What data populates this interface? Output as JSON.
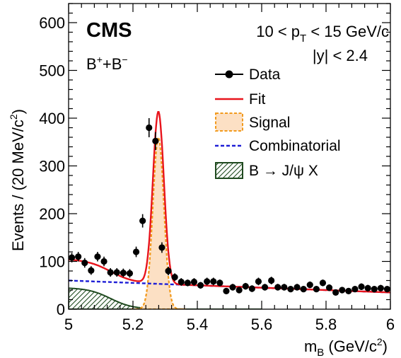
{
  "chart_data": {
    "type": "scatter",
    "experiment_label": "CMS",
    "process_label": {
      "main": "B",
      "sup1": "+",
      "mid": "+B",
      "sup2": "−"
    },
    "kinematic_text": {
      "pt_pre": "10 < p",
      "pt_sub": "T",
      "pt_post": " < 15 GeV/c",
      "y_text": "|y| < 2.4"
    },
    "xlabel": {
      "main": "m",
      "sub": "B",
      "post": " (GeV/c",
      "sup": "2",
      "end": ")"
    },
    "ylabel": {
      "main": "Events / (20 MeV/c",
      "sup": "2",
      "end": ")"
    },
    "xlim": [
      5.0,
      6.0
    ],
    "ylim": [
      0,
      640
    ],
    "x_ticks": [
      "5",
      "5.2",
      "5.4",
      "5.6",
      "5.8",
      "6"
    ],
    "y_ticks": [
      "0",
      "100",
      "200",
      "300",
      "400",
      "500",
      "600"
    ],
    "legend_position": "top-right",
    "legend": [
      "Data",
      "Fit",
      "Signal",
      "Combinatorial",
      "B → J/ψ X"
    ],
    "colors": {
      "fit": "#e8141c",
      "signal_fill": "#fce0c4",
      "signal_line": "#f29a1d",
      "combinatorial": "#1f1fd6",
      "bkg_jpsix": "#1f4a1f"
    },
    "series": [
      {
        "name": "Data",
        "x": [
          5.01,
          5.03,
          5.05,
          5.07,
          5.09,
          5.11,
          5.13,
          5.15,
          5.17,
          5.19,
          5.21,
          5.23,
          5.25,
          5.27,
          5.29,
          5.31,
          5.33,
          5.35,
          5.37,
          5.39,
          5.41,
          5.43,
          5.45,
          5.47,
          5.49,
          5.51,
          5.53,
          5.55,
          5.57,
          5.59,
          5.61,
          5.63,
          5.65,
          5.67,
          5.69,
          5.71,
          5.73,
          5.75,
          5.77,
          5.79,
          5.81,
          5.83,
          5.85,
          5.87,
          5.89,
          5.91,
          5.93,
          5.95,
          5.97,
          5.99
        ],
        "y": [
          108,
          110,
          97,
          81,
          110,
          100,
          77,
          77,
          76,
          75,
          120,
          185,
          380,
          352,
          129,
          80,
          67,
          57,
          55,
          57,
          50,
          58,
          58,
          55,
          38,
          46,
          40,
          48,
          43,
          58,
          46,
          60,
          46,
          46,
          42,
          46,
          42,
          51,
          42,
          55,
          45,
          35,
          40,
          38,
          42,
          47,
          44,
          42,
          44,
          42
        ],
        "err": [
          10,
          10,
          10,
          9,
          10,
          10,
          9,
          9,
          9,
          9,
          11,
          14,
          20,
          19,
          11,
          9,
          8,
          8,
          7,
          8,
          7,
          8,
          8,
          7,
          6,
          7,
          6,
          7,
          7,
          8,
          7,
          8,
          7,
          7,
          6,
          7,
          6,
          7,
          6,
          7,
          7,
          6,
          6,
          6,
          6,
          7,
          7,
          6,
          7,
          6
        ]
      },
      {
        "name": "Fit",
        "model": "total"
      },
      {
        "name": "Signal",
        "model": "gaussian",
        "mean": 5.279,
        "sigma": 0.017,
        "amplitude": 360
      },
      {
        "name": "Combinatorial",
        "model": "linear",
        "y_at_xmin": 60,
        "y_at_xmax": 35
      },
      {
        "name": "B → J/ψ X",
        "model": "falling-edge",
        "plateau": 45,
        "edge": 5.13,
        "width": 0.035,
        "xmax": 5.6
      }
    ]
  }
}
